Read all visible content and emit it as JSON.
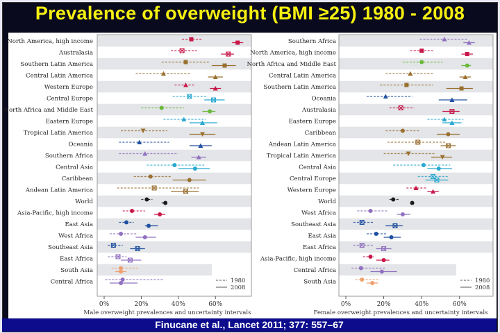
{
  "slide": {
    "title": "Prevalence of overweight (BMI ≥25) 1980 - 2008",
    "footer": "Finucane et al., Lancet 2011; 377: 557–67"
  },
  "colors": {
    "title": "#f5f010",
    "crimson": "#c8184a",
    "brown": "#9a7030",
    "cyan": "#27a8d0",
    "green": "#6ab83a",
    "navy": "#2050a0",
    "purple": "#9070c0",
    "black": "#1a1a1a",
    "peach": "#f0a070"
  },
  "chart_data": [
    {
      "type": "forest",
      "xlabel": "Male overweight prevalences and uncertainty intervals",
      "xlim": [
        0,
        70
      ],
      "xticks": [
        "0%",
        "20%",
        "40%",
        "60%"
      ],
      "xtick_values": [
        0,
        20,
        40,
        60
      ],
      "legend": {
        "position": "bottom-right",
        "entries": [
          "1980",
          "2008"
        ],
        "styles": [
          "dashed",
          "solid"
        ]
      },
      "rows": [
        {
          "region": "North America, high income",
          "color": "crimson",
          "marker": "square",
          "v1980": [
            47,
            42,
            53
          ],
          "v2008": [
            72,
            69,
            75
          ]
        },
        {
          "region": "Australasia",
          "color": "crimson",
          "marker": "x",
          "v1980": [
            42,
            36,
            50
          ],
          "v2008": [
            67,
            63,
            70
          ]
        },
        {
          "region": "Southern Latin America",
          "color": "brown",
          "marker": "square",
          "v1980": [
            44,
            31,
            57
          ],
          "v2008": [
            65,
            58,
            71
          ]
        },
        {
          "region": "Central Latin America",
          "color": "brown",
          "marker": "triangle",
          "v1980": [
            32,
            17,
            47
          ],
          "v2008": [
            60,
            56,
            64
          ]
        },
        {
          "region": "Western Europe",
          "color": "crimson",
          "marker": "triangle",
          "v1980": [
            44,
            38,
            49
          ],
          "v2008": [
            60,
            57,
            63
          ]
        },
        {
          "region": "Central Europe",
          "color": "cyan",
          "marker": "x",
          "v1980": [
            46,
            37,
            55
          ],
          "v2008": [
            59,
            54,
            65
          ]
        },
        {
          "region": "North Africa and Middle East",
          "color": "green",
          "marker": "circle",
          "v1980": [
            31,
            20,
            43
          ],
          "v2008": [
            57,
            53,
            60
          ]
        },
        {
          "region": "Eastern Europe",
          "color": "cyan",
          "marker": "triangle",
          "v1980": [
            43,
            32,
            55
          ],
          "v2008": [
            53,
            46,
            61
          ]
        },
        {
          "region": "Tropical Latin America",
          "color": "brown",
          "marker": "down-triangle",
          "v1980": [
            21,
            9,
            34
          ],
          "v2008": [
            53,
            46,
            60
          ]
        },
        {
          "region": "Oceania",
          "color": "navy",
          "marker": "triangle",
          "v1980": [
            19,
            8,
            35
          ],
          "v2008": [
            52,
            46,
            58
          ]
        },
        {
          "region": "Southern Africa",
          "color": "purple",
          "marker": "triangle",
          "v1980": [
            22,
            8,
            40
          ],
          "v2008": [
            51,
            47,
            55
          ]
        },
        {
          "region": "Central Asia",
          "color": "cyan",
          "marker": "circle",
          "v1980": [
            38,
            23,
            54
          ],
          "v2008": [
            49,
            40,
            57
          ]
        },
        {
          "region": "Caribbean",
          "color": "brown",
          "marker": "circle",
          "v1980": [
            25,
            16,
            36
          ],
          "v2008": [
            46,
            37,
            55
          ]
        },
        {
          "region": "Andean Latin America",
          "color": "brown",
          "marker": "x",
          "v1980": [
            27,
            7,
            51
          ],
          "v2008": [
            44,
            36,
            51
          ]
        },
        {
          "region": "World",
          "color": "black",
          "marker": "circle",
          "v1980": [
            23,
            20,
            26
          ],
          "v2008": [
            33,
            31,
            34
          ]
        },
        {
          "region": "Asia-Pacific, high income",
          "color": "crimson",
          "marker": "circle",
          "v1980": [
            15,
            10,
            22
          ],
          "v2008": [
            30,
            27,
            33
          ]
        },
        {
          "region": "East Asia",
          "color": "navy",
          "marker": "circle",
          "v1980": [
            12,
            8,
            16
          ],
          "v2008": [
            24,
            22,
            29
          ]
        },
        {
          "region": "West Africa",
          "color": "purple",
          "marker": "circle",
          "v1980": [
            9,
            3,
            18
          ],
          "v2008": [
            22,
            17,
            28
          ]
        },
        {
          "region": "Southeast Asia",
          "color": "navy",
          "marker": "x",
          "v1980": [
            5,
            2,
            10
          ],
          "v2008": [
            18,
            14,
            22
          ]
        },
        {
          "region": "East Africa",
          "color": "purple",
          "marker": "x",
          "v1980": [
            7.5,
            2,
            12
          ],
          "v2008": [
            14,
            9,
            20
          ]
        },
        {
          "region": "South Asia",
          "color": "peach",
          "marker": "circle",
          "v1980": [
            9,
            4,
            19
          ],
          "v2008": [
            9,
            6,
            12
          ]
        },
        {
          "region": "Central Africa",
          "color": "purple",
          "marker": "circle",
          "v1980": [
            10,
            0.5,
            32
          ],
          "v2008": [
            9,
            3,
            18
          ]
        }
      ]
    },
    {
      "type": "forest",
      "xlabel": "Female overweight prevalences and uncertainty intervals",
      "xlim": [
        0,
        70
      ],
      "xticks": [
        "0%",
        "20%",
        "40%",
        "60%"
      ],
      "xtick_values": [
        0,
        20,
        40,
        60
      ],
      "legend": {
        "position": "bottom-right",
        "entries": [
          "1980",
          "2008"
        ],
        "styles": [
          "dashed",
          "solid"
        ]
      },
      "rows": [
        {
          "region": "Southern Africa",
          "color": "purple",
          "marker": "triangle",
          "v1980": [
            52,
            39,
            64
          ],
          "v2008": [
            65,
            62,
            68
          ]
        },
        {
          "region": "North America, high income",
          "color": "crimson",
          "marker": "square",
          "v1980": [
            40,
            34,
            46
          ],
          "v2008": [
            64,
            61,
            67
          ]
        },
        {
          "region": "North Africa and Middle East",
          "color": "green",
          "marker": "circle",
          "v1980": [
            40,
            30,
            51
          ],
          "v2008": [
            64,
            61,
            66
          ]
        },
        {
          "region": "Central Latin America",
          "color": "brown",
          "marker": "triangle",
          "v1980": [
            34,
            21,
            46
          ],
          "v2008": [
            63,
            60,
            66
          ]
        },
        {
          "region": "Southern Latin America",
          "color": "brown",
          "marker": "square",
          "v1980": [
            32,
            18,
            46
          ],
          "v2008": [
            61,
            53,
            67
          ]
        },
        {
          "region": "Oceania",
          "color": "navy",
          "marker": "triangle",
          "v1980": [
            21,
            11,
            35
          ],
          "v2008": [
            56,
            49,
            64
          ]
        },
        {
          "region": "Australasia",
          "color": "crimson",
          "marker": "x",
          "v1980": [
            29,
            23,
            36
          ],
          "v2008": [
            56,
            51,
            60
          ]
        },
        {
          "region": "Eastern Europe",
          "color": "cyan",
          "marker": "triangle",
          "v1980": [
            52,
            43,
            62
          ],
          "v2008": [
            56,
            51,
            61
          ]
        },
        {
          "region": "Caribbean",
          "color": "brown",
          "marker": "circle",
          "v1980": [
            30,
            21,
            39
          ],
          "v2008": [
            54,
            48,
            60
          ]
        },
        {
          "region": "Andean Latin America",
          "color": "brown",
          "marker": "x",
          "v1980": [
            38,
            22,
            53
          ],
          "v2008": [
            54,
            50,
            58
          ]
        },
        {
          "region": "Tropical Latin America",
          "color": "brown",
          "marker": "down-triangle",
          "v1980": [
            33,
            20,
            47
          ],
          "v2008": [
            51,
            45,
            56
          ]
        },
        {
          "region": "Central Asia",
          "color": "cyan",
          "marker": "circle",
          "v1980": [
            41,
            25,
            55
          ],
          "v2008": [
            49,
            43,
            56
          ]
        },
        {
          "region": "Central Europe",
          "color": "cyan",
          "marker": "x",
          "v1980": [
            46,
            38,
            54
          ],
          "v2008": [
            48,
            42,
            54
          ]
        },
        {
          "region": "Western Europe",
          "color": "crimson",
          "marker": "triangle",
          "v1980": [
            37,
            32,
            43
          ],
          "v2008": [
            46,
            43,
            49
          ]
        },
        {
          "region": "World",
          "color": "black",
          "marker": "circle",
          "v1980": [
            25,
            23,
            28
          ],
          "v2008": [
            35,
            34,
            36
          ]
        },
        {
          "region": "West Africa",
          "color": "purple",
          "marker": "circle",
          "v1980": [
            13,
            6,
            22
          ],
          "v2008": [
            30,
            27,
            34
          ]
        },
        {
          "region": "Southeast Asia",
          "color": "navy",
          "marker": "x",
          "v1980": [
            8.5,
            4,
            15
          ],
          "v2008": [
            26,
            21,
            30
          ]
        },
        {
          "region": "East Asia",
          "color": "navy",
          "marker": "circle",
          "v1980": [
            16,
            11,
            22
          ],
          "v2008": [
            24,
            20,
            29
          ]
        },
        {
          "region": "East Africa",
          "color": "purple",
          "marker": "x",
          "v1980": [
            8.5,
            4,
            15
          ],
          "v2008": [
            20,
            16,
            24
          ]
        },
        {
          "region": "Asia-Pacific, high income",
          "color": "crimson",
          "marker": "circle",
          "v1980": [
            13,
            9,
            15
          ],
          "v2008": [
            20,
            16,
            23
          ]
        },
        {
          "region": "Central Africa",
          "color": "purple",
          "marker": "circle",
          "v1980": [
            8,
            3,
            21
          ],
          "v2008": [
            19,
            13,
            27
          ]
        },
        {
          "region": "South Asia",
          "color": "peach",
          "marker": "circle",
          "v1980": [
            8.5,
            5,
            17
          ],
          "v2008": [
            14,
            11,
            17
          ]
        }
      ]
    }
  ]
}
